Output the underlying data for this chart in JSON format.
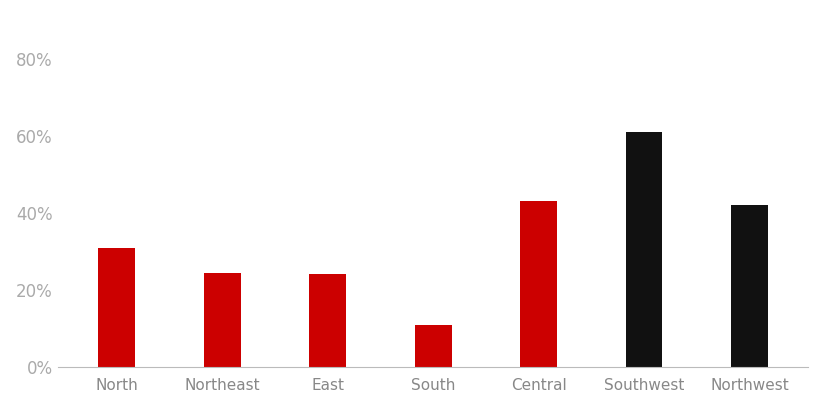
{
  "categories": [
    "North",
    "Northeast",
    "East",
    "South",
    "Central",
    "Southwest",
    "Northwest"
  ],
  "values": [
    0.31,
    0.245,
    0.24,
    0.11,
    0.43,
    0.61,
    0.42
  ],
  "bar_colors": [
    "#cc0000",
    "#cc0000",
    "#cc0000",
    "#cc0000",
    "#cc0000",
    "#111111",
    "#111111"
  ],
  "ylim": [
    0,
    0.92
  ],
  "yticks": [
    0.0,
    0.2,
    0.4,
    0.6,
    0.8
  ],
  "ytick_labels": [
    "0%",
    "20%",
    "40%",
    "60%",
    "80%"
  ],
  "background_color": "#ffffff",
  "bar_width": 0.35,
  "tick_fontsize": 12,
  "label_fontsize": 11,
  "tick_color": "#aaaaaa",
  "label_color": "#888888"
}
